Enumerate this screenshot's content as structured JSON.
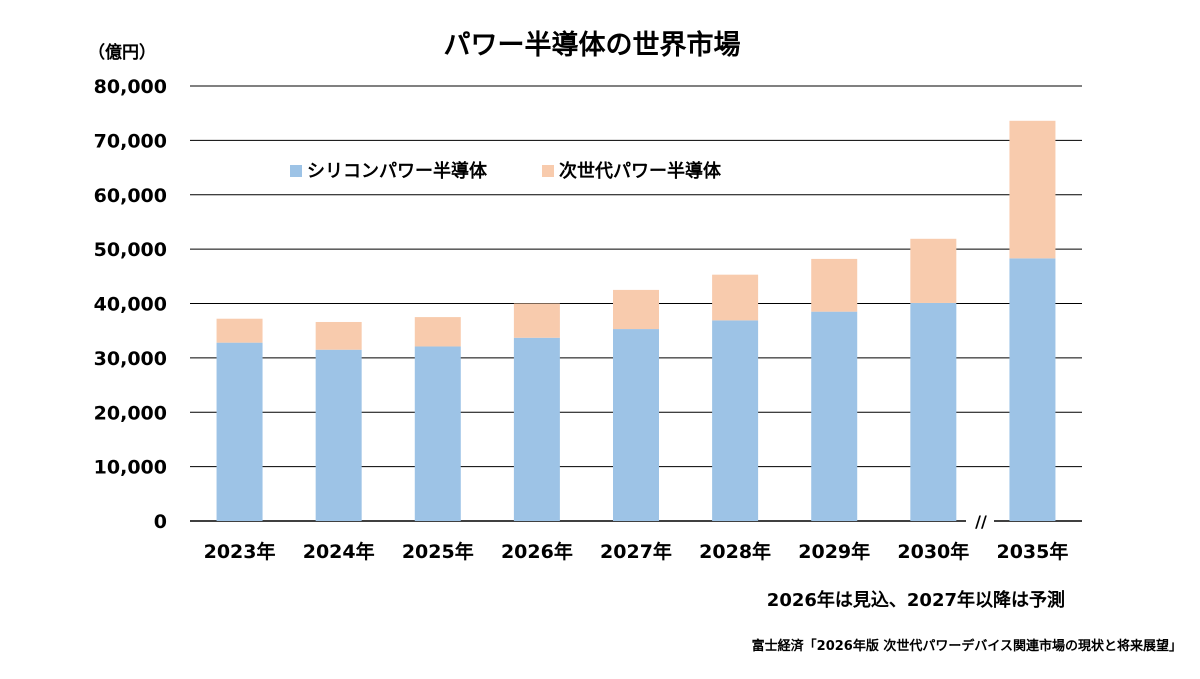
{
  "colors": {
    "silicon": "#9DC3E6",
    "next_gen": "#F8CBAD",
    "grid": "#000000",
    "text": "#000000"
  },
  "chart_data": {
    "type": "bar",
    "stacked": true,
    "title": "パワー半導体の世界市場",
    "unit_label": "（億円）",
    "categories": [
      "2023年",
      "2024年",
      "2025年",
      "2026年",
      "2027年",
      "2028年",
      "2029年",
      "2030年",
      "2035年"
    ],
    "series": [
      {
        "name": "シリコンパワー半導体",
        "values": [
          32800,
          31500,
          32100,
          33700,
          35300,
          36900,
          38500,
          40100,
          48300
        ]
      },
      {
        "name": "次世代パワー半導体",
        "values": [
          4400,
          5100,
          5400,
          6300,
          7200,
          8400,
          9700,
          11800,
          25300
        ]
      }
    ],
    "ylim": [
      0,
      80000
    ],
    "yticks": [
      0,
      10000,
      20000,
      30000,
      40000,
      50000,
      60000,
      70000,
      80000
    ],
    "ytick_labels": [
      "0",
      "10,000",
      "20,000",
      "30,000",
      "40,000",
      "50,000",
      "60,000",
      "70,000",
      "80,000"
    ],
    "grid": true,
    "legend_position": "top-left",
    "axis_break": "//",
    "note": "2026年は見込、2027年以降は予測",
    "source": "富士経済「2026年版 次世代パワーデバイス関連市場の現状と将来展望」"
  }
}
